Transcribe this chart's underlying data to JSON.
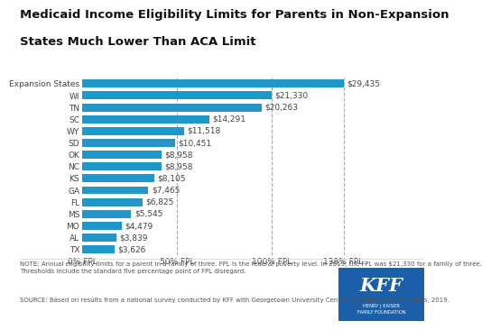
{
  "title_line1": "Medicaid Income Eligibility Limits for Parents in Non-Expansion",
  "title_line2": "States Much Lower Than ACA Limit",
  "categories": [
    "Expansion States",
    "WI",
    "TN",
    "SC",
    "WY",
    "SD",
    "OK",
    "NC",
    "KS",
    "GA",
    "FL",
    "MS",
    "MO",
    "AL",
    "TX"
  ],
  "values": [
    29435,
    21330,
    20263,
    14291,
    11518,
    10451,
    8958,
    8958,
    8105,
    7465,
    6825,
    5545,
    4479,
    3839,
    3626
  ],
  "labels": [
    "$29,435",
    "$21,330",
    "$20,263",
    "$14,291",
    "$11,518",
    "$10,451",
    "$8,958",
    "$8,958",
    "$8,105",
    "$7,465",
    "$6,825",
    "$5,545",
    "$4,479",
    "$3,839",
    "$3,626"
  ],
  "bar_color": "#2196c8",
  "background_color": "#ffffff",
  "title_fontsize": 9.5,
  "label_fontsize": 6.5,
  "tick_fontsize": 6.5,
  "max_value": 33000,
  "x_tick_labels": [
    "0% FPL",
    "50% FPL",
    "100% FPL",
    "138% FPL"
  ],
  "x_tick_values": [
    0,
    10665,
    21330,
    29435
  ],
  "dashed_line_color": "#aaaaaa",
  "note_text": "NOTE: Annual eligibility limits for a parent in a family of three. FPL is the federal poverty level. In 2019, the FPL was $21,330 for a family of three.\nThresholds include the standard five percentage point of FPL disregard.",
  "source_text": "SOURCE: Based on results from a national survey conducted by KFF with Georgetown University Center for Children and Families, 2019.",
  "kff_bg_color": "#1a5fa8",
  "separator_color": "#dddddd",
  "text_color": "#555555",
  "title_color": "#111111"
}
